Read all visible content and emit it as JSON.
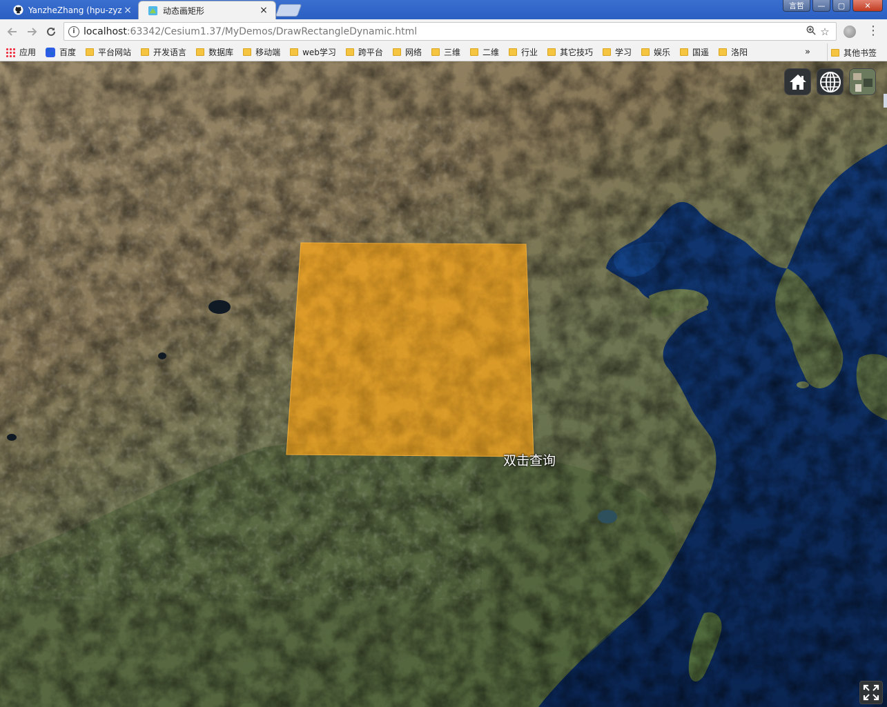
{
  "browser": {
    "tabs": [
      {
        "title": "YanzheZhang (hpu-zyz",
        "close": "×"
      },
      {
        "title": "动态画矩形",
        "close": "×"
      }
    ],
    "window_buttons": {
      "user": "言哲",
      "min": "—",
      "max": "▢",
      "close": "✕"
    },
    "url_host": "localhost",
    "url_rest": ":63342/Cesium1.37/MyDemos/DrawRectangleDynamic.html",
    "bookmarks": [
      {
        "label": "应用",
        "icon": "apps-icon"
      },
      {
        "label": "百度",
        "icon": "baidu-icon"
      },
      {
        "label": "平台网站",
        "icon": "folder-icon"
      },
      {
        "label": "开发语言",
        "icon": "folder-icon"
      },
      {
        "label": "数据库",
        "icon": "folder-icon"
      },
      {
        "label": "移动端",
        "icon": "folder-icon"
      },
      {
        "label": "web学习",
        "icon": "folder-icon"
      },
      {
        "label": "跨平台",
        "icon": "folder-icon"
      },
      {
        "label": "网络",
        "icon": "folder-icon"
      },
      {
        "label": "三维",
        "icon": "folder-icon"
      },
      {
        "label": "二维",
        "icon": "folder-icon"
      },
      {
        "label": "行业",
        "icon": "folder-icon"
      },
      {
        "label": "其它技巧",
        "icon": "folder-icon"
      },
      {
        "label": "学习",
        "icon": "folder-icon"
      },
      {
        "label": "娱乐",
        "icon": "folder-icon"
      },
      {
        "label": "国遥",
        "icon": "folder-icon"
      },
      {
        "label": "洛阳",
        "icon": "folder-icon"
      }
    ],
    "bookmarks_more": "»",
    "other_bookmarks": "其他书签"
  },
  "viewer": {
    "label": "双击查询",
    "rectangle_color": "#f0a21e",
    "ocean_color": "#0b2a5c",
    "land_color": "#8a7a5c",
    "buttons": [
      "home-icon",
      "globe-icon",
      "imagery-icon",
      "fullscreen-icon"
    ]
  }
}
